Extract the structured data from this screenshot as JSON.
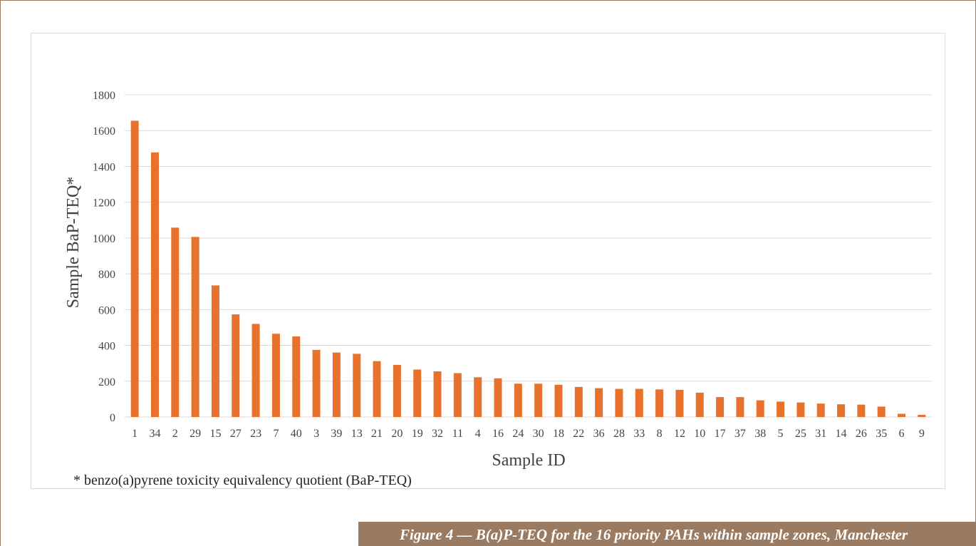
{
  "colors": {
    "bar": "#e8722c",
    "grid": "#d9d9d9",
    "axis_text": "#444444",
    "frame_border": "#9a7b62",
    "caption_bg": "#9a7b62",
    "caption_text": "#ffffff"
  },
  "caption": "Figure 4 — B(a)P-TEQ for the 16 priority PAHs within sample zones, Manchester",
  "footnote": "* benzo(a)pyrene toxicity equivalency quotient (BaP-TEQ)",
  "chart_data": {
    "type": "bar",
    "title": "",
    "xlabel": "Sample ID",
    "ylabel": "Sample BaP-TEQ*",
    "ylim": [
      0,
      1800
    ],
    "yticks": [
      0,
      200,
      400,
      600,
      800,
      1000,
      1200,
      1400,
      1600,
      1800
    ],
    "grid": true,
    "legend": "none",
    "categories": [
      "1",
      "34",
      "2",
      "29",
      "15",
      "27",
      "23",
      "7",
      "40",
      "3",
      "39",
      "13",
      "21",
      "20",
      "19",
      "32",
      "11",
      "4",
      "16",
      "24",
      "30",
      "18",
      "22",
      "36",
      "28",
      "33",
      "8",
      "12",
      "10",
      "17",
      "37",
      "38",
      "5",
      "25",
      "31",
      "14",
      "26",
      "35",
      "6",
      "9"
    ],
    "values": [
      1655,
      1478,
      1058,
      1006,
      735,
      573,
      520,
      465,
      450,
      375,
      360,
      353,
      312,
      291,
      265,
      255,
      245,
      222,
      216,
      186,
      186,
      180,
      168,
      161,
      157,
      157,
      154,
      152,
      136,
      111,
      111,
      93,
      86,
      81,
      75,
      71,
      69,
      58,
      18,
      12
    ]
  }
}
